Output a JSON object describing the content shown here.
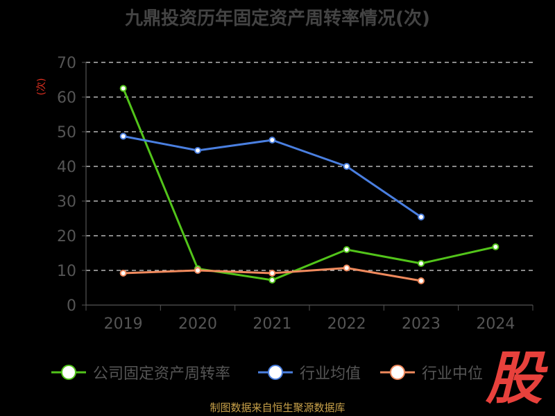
{
  "title": "九鼎投资历年固定资产周转率情况(次)",
  "footer": "制图数据来自恒生聚源数据库",
  "logo_char": "股",
  "colors": {
    "background": "#000000",
    "axis": "#555555",
    "grid": "#dddddd",
    "tick_text": "#555555",
    "ylabel": "#e03020",
    "footer": "#c9a24a",
    "logo": "#e8413c"
  },
  "chart_data": {
    "type": "line",
    "title": "九鼎投资历年固定资产周转率情况(次)",
    "ylabel": "(次)",
    "xlabel": "",
    "categories": [
      "2019",
      "2020",
      "2021",
      "2022",
      "2023",
      "2024"
    ],
    "ylim": [
      0,
      70
    ],
    "yticks": [
      0,
      10,
      20,
      30,
      40,
      50,
      60,
      70
    ],
    "grid": "horizontal dashed",
    "legend_position": "bottom",
    "series": [
      {
        "name": "公司固定资产周转率",
        "color": "#52c41a",
        "values": [
          62.5,
          10.5,
          7.2,
          16.0,
          12.0,
          16.8
        ]
      },
      {
        "name": "行业均值",
        "color": "#4a7fe0",
        "values": [
          48.7,
          44.6,
          47.6,
          40.0,
          25.4,
          null
        ]
      },
      {
        "name": "行业中位",
        "color": "#f08a5d",
        "values": [
          9.2,
          10.0,
          9.2,
          10.7,
          7.0,
          null
        ]
      }
    ]
  }
}
